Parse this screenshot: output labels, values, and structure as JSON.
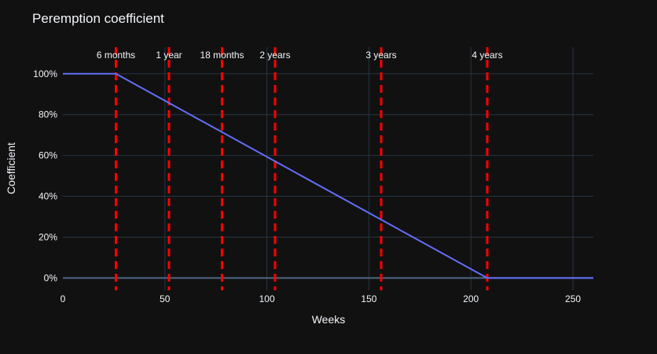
{
  "chart_data": {
    "type": "line",
    "title": "Peremption coefficient",
    "xlabel": "Weeks",
    "ylabel": "Coefficient",
    "xlim": [
      0,
      260
    ],
    "ylim": [
      -0.06,
      1.13
    ],
    "x_ticks": [
      0,
      50,
      100,
      150,
      200,
      250
    ],
    "x_tick_labels": [
      "0",
      "50",
      "100",
      "150",
      "200",
      "250"
    ],
    "y_ticks": [
      0,
      0.2,
      0.4,
      0.6,
      0.8,
      1.0
    ],
    "y_tick_labels": [
      "0%",
      "20%",
      "40%",
      "60%",
      "80%",
      "100%"
    ],
    "grid": true,
    "series": [
      {
        "color": "#636efa",
        "x": [
          0,
          26,
          208,
          260
        ],
        "y": [
          1.0,
          1.0,
          0.0,
          0.0
        ]
      }
    ],
    "vlines": [
      {
        "x": 26,
        "label": "6 months"
      },
      {
        "x": 52,
        "label": "1 year"
      },
      {
        "x": 78,
        "label": "18 months"
      },
      {
        "x": 104,
        "label": "2 years"
      },
      {
        "x": 156,
        "label": "3 years"
      },
      {
        "x": 208,
        "label": "4 years"
      }
    ],
    "vline_color": "#ff0000",
    "background": "#111111",
    "grid_color": "#283442",
    "text_color": "#f2f5fa"
  }
}
